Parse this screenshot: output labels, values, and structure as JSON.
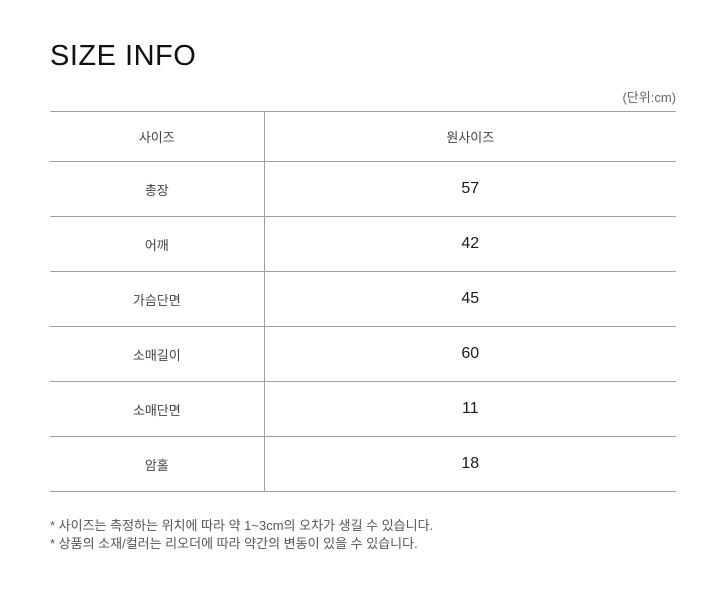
{
  "page": {
    "title": "SIZE INFO",
    "unit_note": "(단위:cm)"
  },
  "size_table": {
    "header": {
      "label": "사이즈",
      "value": "원사이즈"
    },
    "rows": [
      {
        "label": "총장",
        "value": "57"
      },
      {
        "label": "어깨",
        "value": "42"
      },
      {
        "label": "가슴단면",
        "value": "45"
      },
      {
        "label": "소매길이",
        "value": "60"
      },
      {
        "label": "소매단면",
        "value": "11"
      },
      {
        "label": "암홀",
        "value": "18"
      }
    ]
  },
  "footnotes": [
    "* 사이즈는 측정하는 위치에 따라 약 1~3cm의 오차가 생길 수 있습니다.",
    "* 상품의 소재/컬러는 리오더에 따라 약간의 변동이 있을 수 있습니다."
  ],
  "colors": {
    "border": "#a0a0a0",
    "title_text": "#111111",
    "label_text": "#444444",
    "value_text": "#1a1a1a",
    "note_text": "#555555",
    "background": "#ffffff"
  }
}
